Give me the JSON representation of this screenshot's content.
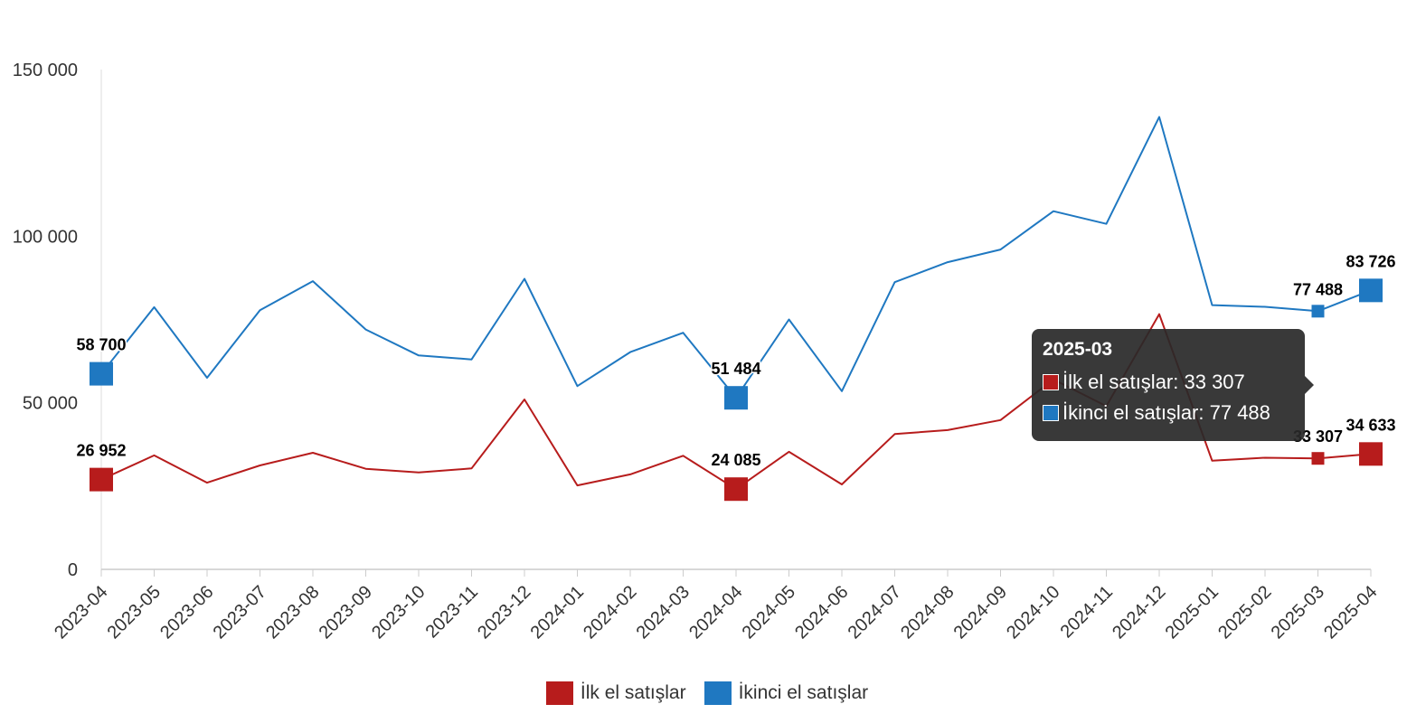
{
  "chart_data": {
    "type": "line",
    "categories": [
      "2023-04",
      "2023-05",
      "2023-06",
      "2023-07",
      "2023-08",
      "2023-09",
      "2023-10",
      "2023-11",
      "2023-12",
      "2024-01",
      "2024-02",
      "2024-03",
      "2024-04",
      "2024-05",
      "2024-06",
      "2024-07",
      "2024-08",
      "2024-09",
      "2024-10",
      "2024-11",
      "2024-12",
      "2025-01",
      "2025-02",
      "2025-03",
      "2025-04"
    ],
    "series": [
      {
        "name": "İlk el satışlar",
        "color": "#b71c1c",
        "values": [
          26952,
          34200,
          26000,
          31200,
          35000,
          30200,
          29100,
          30300,
          51000,
          25200,
          28500,
          34100,
          24085,
          35300,
          25500,
          40600,
          41800,
          44800,
          57000,
          49000,
          76600,
          32600,
          33500,
          33307,
          34633
        ]
      },
      {
        "name": "İkinci el satışlar",
        "color": "#1f78c1",
        "values": [
          58700,
          78700,
          57500,
          77800,
          86500,
          72000,
          64200,
          63000,
          87200,
          55000,
          65200,
          71000,
          51484,
          75000,
          53500,
          86200,
          92200,
          96000,
          107500,
          103700,
          135800,
          79300,
          78800,
          77488,
          83726
        ]
      }
    ],
    "ylim": [
      0,
      150000
    ],
    "yticks": [
      0,
      50000,
      100000,
      150000
    ],
    "ytick_labels": [
      "0",
      "50 000",
      "100 000",
      "150 000"
    ],
    "grid": false,
    "legend_position": "bottom",
    "markers": [
      {
        "series": 0,
        "index": 0,
        "label": "26 952",
        "size": "large"
      },
      {
        "series": 0,
        "index": 12,
        "label": "24 085",
        "size": "large"
      },
      {
        "series": 0,
        "index": 23,
        "label": "33 307",
        "size": "small"
      },
      {
        "series": 0,
        "index": 24,
        "label": "34 633",
        "size": "large"
      },
      {
        "series": 1,
        "index": 0,
        "label": "58 700",
        "size": "large"
      },
      {
        "series": 1,
        "index": 12,
        "label": "51 484",
        "size": "large"
      },
      {
        "series": 1,
        "index": 23,
        "label": "77 488",
        "size": "small"
      },
      {
        "series": 1,
        "index": 24,
        "label": "83 726",
        "size": "large"
      }
    ]
  },
  "tooltip": {
    "title": "2025-03",
    "rows": [
      {
        "label": "İlk el satışlar: 33 307",
        "color": "#b71c1c"
      },
      {
        "label": "İkinci el satışlar: 77 488",
        "color": "#1f78c1"
      }
    ]
  },
  "legend": {
    "items": [
      {
        "label": "İlk el satışlar",
        "color": "#b71c1c"
      },
      {
        "label": "İkinci el satışlar",
        "color": "#1f78c1"
      }
    ]
  }
}
